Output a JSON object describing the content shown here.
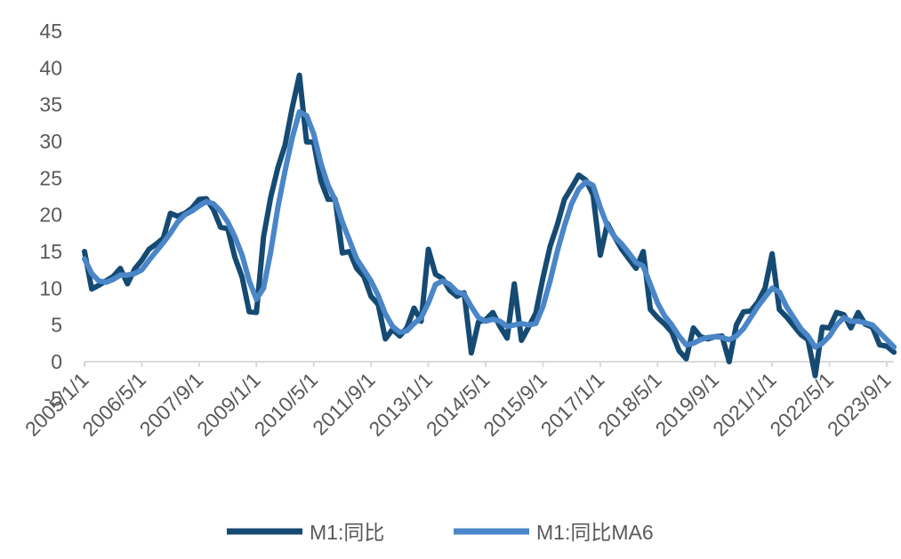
{
  "chart_data": {
    "type": "line",
    "categories": [
      "2005/1/1",
      null,
      null,
      null,
      null,
      null,
      null,
      null,
      "2006/5/1",
      null,
      null,
      null,
      null,
      null,
      null,
      null,
      "2007/9/1",
      null,
      null,
      null,
      null,
      null,
      null,
      null,
      "2009/1/1",
      null,
      null,
      null,
      null,
      null,
      null,
      null,
      "2010/5/1",
      null,
      null,
      null,
      null,
      null,
      null,
      null,
      "2011/9/1",
      null,
      null,
      null,
      null,
      null,
      null,
      null,
      "2013/1/1",
      null,
      null,
      null,
      null,
      null,
      null,
      null,
      "2014/5/1",
      null,
      null,
      null,
      null,
      null,
      null,
      null,
      "2015/9/1",
      null,
      null,
      null,
      null,
      null,
      null,
      null,
      "2017/1/1",
      null,
      null,
      null,
      null,
      null,
      null,
      null,
      "2018/5/1",
      null,
      null,
      null,
      null,
      null,
      null,
      null,
      "2019/9/1",
      null,
      null,
      null,
      null,
      null,
      null,
      null,
      "2021/1/1",
      null,
      null,
      null,
      null,
      null,
      null,
      null,
      "2022/5/1",
      null,
      null,
      null,
      null,
      null,
      null,
      null,
      "2023/9/1",
      null
    ],
    "series": [
      {
        "name": "M1:同比",
        "color": "#154a72",
        "values": [
          15,
          9.9,
          10.4,
          11,
          11.6,
          12.7,
          10.6,
          12.6,
          13.8,
          15.3,
          16,
          16.8,
          20.2,
          19.8,
          20.2,
          20.9,
          22.1,
          22.2,
          20.7,
          18.3,
          18.1,
          14.2,
          11.5,
          6.8,
          6.7,
          17,
          22.4,
          26.4,
          29.5,
          34.6,
          39,
          29.9,
          29.9,
          24.6,
          22.1,
          22.1,
          14.8,
          15,
          12.7,
          11.6,
          8.9,
          7.8,
          3.1,
          4.4,
          3.5,
          4.6,
          7.3,
          5.5,
          15.3,
          11.9,
          11.3,
          9.7,
          8.9,
          9.4,
          1.2,
          5.4,
          5.7,
          6.7,
          4.8,
          3.2,
          10.6,
          2.9,
          4.7,
          6.6,
          11.4,
          15.7,
          18.6,
          22.1,
          23.7,
          25.4,
          24.7,
          22.7,
          14.5,
          18.8,
          17,
          15.3,
          14,
          12.7,
          15,
          7.1,
          6,
          5.1,
          4,
          1.5,
          0.4,
          4.6,
          3.4,
          3.1,
          3.4,
          3.5,
          0,
          5,
          6.8,
          6.9,
          8.1,
          10,
          14.7,
          7.1,
          6.1,
          4.9,
          3.7,
          3,
          -1.9,
          4.7,
          4.6,
          6.7,
          6.4,
          4.6,
          6.7,
          5.1,
          4.7,
          2.3,
          2.1,
          1.3
        ]
      },
      {
        "name": "M1:同比MA6",
        "color": "#4a86c8",
        "values": [
          14,
          12,
          11,
          10.8,
          11.2,
          11.8,
          11.8,
          12,
          12.5,
          13.8,
          15,
          16.2,
          17.5,
          19,
          20,
          20.5,
          21.2,
          21.8,
          21.5,
          20.5,
          19,
          17,
          14.5,
          11,
          8.5,
          10,
          15,
          21,
          26,
          30.5,
          34,
          33.5,
          31,
          27,
          24,
          22,
          19,
          16.5,
          14,
          12.5,
          11,
          9,
          6.5,
          4.8,
          4,
          4.2,
          5.2,
          6,
          8,
          10.5,
          11,
          10.5,
          9.5,
          9.2,
          7.5,
          6,
          5.5,
          5.8,
          5.5,
          4.8,
          5,
          5.2,
          5,
          5.2,
          7.5,
          11,
          15,
          18.5,
          21.5,
          23.5,
          24.5,
          24,
          21,
          18.5,
          17,
          16,
          14.8,
          13.5,
          13,
          10.5,
          8,
          6.2,
          5,
          3.5,
          2.3,
          2.5,
          3,
          3.3,
          3.4,
          3.3,
          3,
          3.5,
          4.5,
          6,
          7.5,
          8.8,
          10,
          9.5,
          7.5,
          6,
          4.5,
          3.5,
          2,
          2.5,
          3.5,
          5,
          6,
          5.5,
          5.5,
          5.3,
          5,
          4,
          3,
          2
        ]
      }
    ],
    "ylim": [
      -5,
      45
    ],
    "yticks": [
      -5,
      0,
      5,
      10,
      15,
      20,
      25,
      30,
      35,
      40,
      45
    ],
    "grid": false,
    "legend": "bottom"
  }
}
